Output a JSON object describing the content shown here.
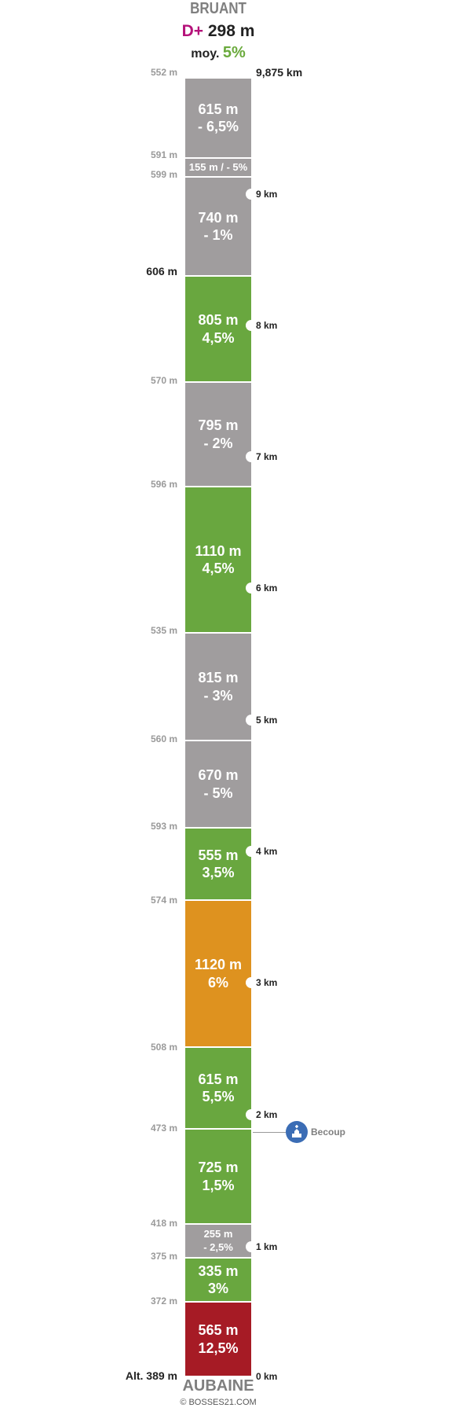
{
  "header": {
    "top_name": "BRUANT",
    "dplus_label": "D+",
    "dplus_value": "298 m",
    "moy_label": "moy.",
    "moy_value": "5%"
  },
  "footer": {
    "bottom_name": "AUBAINE",
    "credit": "© BOSSES21.COM"
  },
  "colors": {
    "grey": "#a09d9e",
    "green": "#69a73f",
    "orange": "#de921f",
    "red": "#a61b25"
  },
  "segments_top_to_bottom": [
    {
      "line1": "615 m",
      "line2": "- 6,5%",
      "color": "grey"
    },
    {
      "line1": "155 m / - 5%",
      "line2": "",
      "color": "grey"
    },
    {
      "line1": "740 m",
      "line2": "- 1%",
      "color": "grey"
    },
    {
      "line1": "805 m",
      "line2": "4,5%",
      "color": "green"
    },
    {
      "line1": "795 m",
      "line2": "- 2%",
      "color": "grey"
    },
    {
      "line1": "1110 m",
      "line2": "4,5%",
      "color": "green"
    },
    {
      "line1": "815 m",
      "line2": "- 3%",
      "color": "grey"
    },
    {
      "line1": "670 m",
      "line2": "- 5%",
      "color": "grey"
    },
    {
      "line1": "555 m",
      "line2": "3,5%",
      "color": "green"
    },
    {
      "line1": "1120 m",
      "line2": "6%",
      "color": "orange"
    },
    {
      "line1": "615 m",
      "line2": "5,5%",
      "color": "green"
    },
    {
      "line1": "725 m",
      "line2": "1,5%",
      "color": "green"
    },
    {
      "line1": "255 m",
      "line2": "- 2,5%",
      "color": "grey"
    },
    {
      "line1": "335 m",
      "line2": "3%",
      "color": "green"
    },
    {
      "line1": "565 m",
      "line2": "12,5%",
      "color": "red"
    }
  ],
  "altitudes": [
    {
      "label": "552 m"
    },
    {
      "label": "591 m"
    },
    {
      "label": "599 m"
    },
    {
      "label": "606 m"
    },
    {
      "label": "570 m"
    },
    {
      "label": "596 m"
    },
    {
      "label": "535 m"
    },
    {
      "label": "560 m"
    },
    {
      "label": "593 m"
    },
    {
      "label": "574 m"
    },
    {
      "label": "508 m"
    },
    {
      "label": "473 m"
    },
    {
      "label": "418 m"
    },
    {
      "label": "375 m"
    },
    {
      "label": "372 m"
    },
    {
      "label": "Alt. 389 m"
    }
  ],
  "km_markers": [
    {
      "label": "9,875 km"
    },
    {
      "label": "9 km"
    },
    {
      "label": "8 km"
    },
    {
      "label": "7 km"
    },
    {
      "label": "6 km"
    },
    {
      "label": "5 km"
    },
    {
      "label": "4 km"
    },
    {
      "label": "3 km"
    },
    {
      "label": "2 km"
    },
    {
      "label": "1 km"
    },
    {
      "label": "0 km"
    }
  ],
  "poi": {
    "label": "Becoup",
    "icon": "church-icon"
  }
}
